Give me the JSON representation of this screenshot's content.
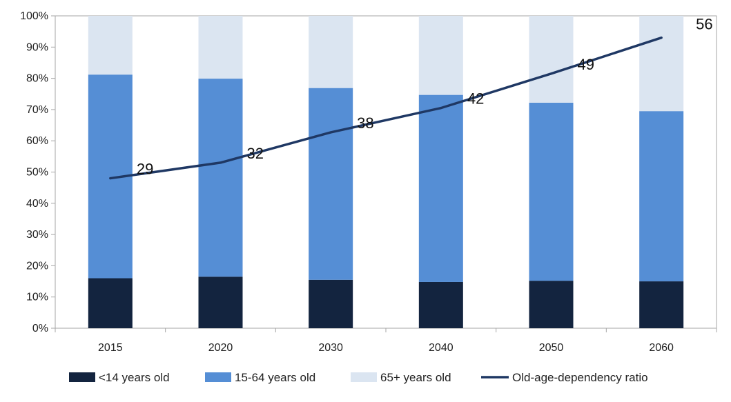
{
  "chart_data": {
    "type": "bar",
    "stacked": true,
    "categories": [
      "2015",
      "2020",
      "2030",
      "2040",
      "2050",
      "2060"
    ],
    "series": [
      {
        "name": "<14 years old",
        "values": [
          16,
          16.5,
          15.5,
          14.8,
          15.2,
          15
        ],
        "color": "#13243f"
      },
      {
        "name": "15-64 years old",
        "values": [
          65.2,
          63.4,
          61.4,
          59.9,
          57,
          54.5
        ],
        "color": "#558ed5"
      },
      {
        "name": "65+ years old",
        "values": [
          18.8,
          20.1,
          23.1,
          25.3,
          27.8,
          30.5
        ],
        "color": "#dbe5f1"
      }
    ],
    "line": {
      "name": "Old-age-dependency ratio",
      "values": [
        29,
        32,
        38,
        42,
        49,
        56
      ],
      "labels": [
        "29",
        "32",
        "38",
        "42",
        "49",
        "56"
      ],
      "plotted_percent": [
        48,
        53,
        62.7,
        70.5,
        81.5,
        93
      ],
      "color": "#1f3864"
    },
    "y_ticks": [
      "0%",
      "10%",
      "20%",
      "30%",
      "40%",
      "50%",
      "60%",
      "70%",
      "80%",
      "90%",
      "100%"
    ],
    "ylim": [
      0,
      100
    ],
    "grid": false,
    "legend_position": "bottom"
  }
}
